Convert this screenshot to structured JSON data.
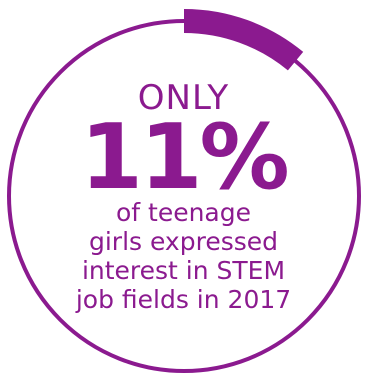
{
  "stat": {
    "prefix": "ONLY",
    "value": "11%",
    "fraction": 0.11,
    "description_lines": [
      "of teenage",
      "girls expressed",
      "interest in STEM",
      "job fields in 2017"
    ]
  },
  "colors": {
    "accent": "#8b1a8f",
    "background": "#ffffff"
  }
}
